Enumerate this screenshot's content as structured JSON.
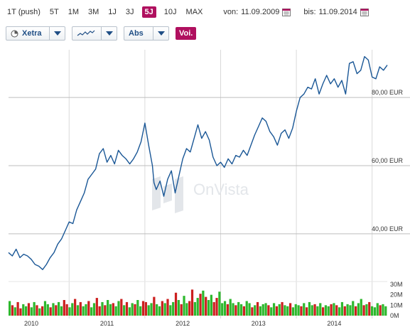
{
  "periods": [
    {
      "label": "1T (push)",
      "active": false
    },
    {
      "label": "5T",
      "active": false
    },
    {
      "label": "1M",
      "active": false
    },
    {
      "label": "3M",
      "active": false
    },
    {
      "label": "1J",
      "active": false
    },
    {
      "label": "3J",
      "active": false
    },
    {
      "label": "5J",
      "active": true
    },
    {
      "label": "10J",
      "active": false
    },
    {
      "label": "MAX",
      "active": false
    }
  ],
  "date_range": {
    "from_label": "von:",
    "from_value": "11.09.2009",
    "to_label": "bis:",
    "to_value": "11.09.2014"
  },
  "controls": {
    "exchange": "Xetra",
    "scale": "Abs",
    "compare": "Voi."
  },
  "watermark": "OnVista",
  "colors": {
    "accent": "#b0105f",
    "line": "#1a5796",
    "grid": "#cfcfcf",
    "volume_up": "#2db82d",
    "volume_down": "#cc1f1f"
  },
  "chart_data": {
    "type": "line",
    "x_labels": [
      "2010",
      "2011",
      "2012",
      "2013",
      "2014"
    ],
    "x_range": [
      2009.7,
      2014.7
    ],
    "y_ticks": [
      "40,00 EUR",
      "60,00 EUR",
      "80,00 EUR"
    ],
    "y_tick_values": [
      40,
      60,
      80
    ],
    "y_range": [
      26,
      94
    ],
    "price_series": {
      "name": "",
      "x": [
        2009.7,
        2009.75,
        2009.8,
        2009.85,
        2009.9,
        2009.95,
        2010.0,
        2010.05,
        2010.1,
        2010.15,
        2010.2,
        2010.25,
        2010.3,
        2010.35,
        2010.4,
        2010.45,
        2010.5,
        2010.55,
        2010.6,
        2010.65,
        2010.7,
        2010.75,
        2010.8,
        2010.85,
        2010.9,
        2010.95,
        2011.0,
        2011.05,
        2011.1,
        2011.15,
        2011.2,
        2011.25,
        2011.3,
        2011.35,
        2011.4,
        2011.45,
        2011.5,
        2011.55,
        2011.6,
        2011.62,
        2011.65,
        2011.7,
        2011.75,
        2011.8,
        2011.85,
        2011.9,
        2011.95,
        2012.0,
        2012.05,
        2012.1,
        2012.15,
        2012.2,
        2012.25,
        2012.3,
        2012.35,
        2012.4,
        2012.45,
        2012.5,
        2012.55,
        2012.6,
        2012.65,
        2012.7,
        2012.75,
        2012.8,
        2012.85,
        2012.9,
        2012.95,
        2013.0,
        2013.05,
        2013.1,
        2013.15,
        2013.2,
        2013.25,
        2013.3,
        2013.35,
        2013.4,
        2013.45,
        2013.5,
        2013.55,
        2013.6,
        2013.65,
        2013.7,
        2013.75,
        2013.8,
        2013.85,
        2013.9,
        2013.95,
        2014.0,
        2014.05,
        2014.1,
        2014.15,
        2014.2,
        2014.25,
        2014.3,
        2014.35,
        2014.4,
        2014.45,
        2014.5,
        2014.55,
        2014.6,
        2014.65,
        2014.7
      ],
      "y": [
        34.5,
        33.5,
        35.5,
        33.0,
        34.0,
        33.5,
        32.5,
        31.0,
        30.5,
        29.5,
        31.0,
        33.0,
        34.5,
        37.0,
        38.5,
        41.0,
        43.5,
        43.0,
        47.0,
        49.5,
        52.0,
        56.0,
        57.5,
        59.0,
        63.5,
        65.0,
        61.0,
        63.0,
        60.5,
        64.5,
        63.0,
        62.0,
        60.5,
        62.0,
        64.0,
        67.0,
        72.5,
        66.0,
        60.0,
        55.0,
        53.0,
        55.5,
        51.0,
        56.0,
        58.5,
        52.0,
        57.0,
        62.0,
        65.0,
        64.0,
        68.0,
        72.0,
        68.0,
        70.0,
        67.5,
        62.5,
        60.0,
        61.0,
        59.5,
        62.0,
        60.5,
        63.0,
        62.5,
        64.5,
        63.0,
        66.0,
        69.0,
        71.5,
        74.0,
        73.0,
        70.0,
        68.5,
        66.0,
        69.5,
        70.5,
        68.0,
        71.0,
        76.0,
        80.0,
        81.0,
        83.0,
        82.5,
        85.5,
        81.0,
        84.0,
        86.5,
        84.0,
        85.5,
        83.0,
        85.0,
        81.0,
        90.0,
        90.5,
        87.0,
        88.0,
        92.0,
        91.0,
        86.0,
        85.5,
        89.0,
        88.0,
        89.5
      ]
    },
    "volume_series": {
      "axis_ticks": [
        "30M",
        "20M",
        "10M",
        "0M"
      ],
      "axis_values": [
        30,
        20,
        10,
        0
      ],
      "values": [
        14,
        10,
        8,
        13,
        7,
        11,
        9,
        12,
        8,
        13,
        10,
        7,
        9,
        14,
        11,
        8,
        12,
        10,
        13,
        9,
        15,
        11,
        8,
        12,
        16,
        10,
        13,
        9,
        11,
        14,
        8,
        12,
        17,
        9,
        13,
        10,
        15,
        11,
        12,
        9,
        14,
        16,
        10,
        13,
        8,
        12,
        11,
        15,
        9,
        14,
        13,
        10,
        12,
        18,
        11,
        9,
        14,
        12,
        16,
        10,
        13,
        22,
        15,
        11,
        19,
        12,
        14,
        25,
        13,
        17,
        21,
        24,
        18,
        15,
        20,
        13,
        17,
        23,
        12,
        14,
        11,
        16,
        12,
        10,
        13,
        11,
        9,
        14,
        12,
        8,
        10,
        13,
        9,
        11,
        12,
        10,
        8,
        12,
        9,
        11,
        13,
        10,
        9,
        12,
        8,
        11,
        10,
        9,
        12,
        8,
        13,
        10,
        11,
        9,
        12,
        8,
        10,
        9,
        11,
        12,
        10,
        8,
        13,
        9,
        11,
        10,
        14,
        9,
        12,
        16,
        10,
        11,
        13,
        9,
        8,
        12,
        10,
        11,
        9
      ],
      "up": [
        1,
        0,
        1,
        0,
        0,
        1,
        1,
        0,
        1,
        1,
        0,
        1,
        0,
        1,
        1,
        0,
        1,
        0,
        1,
        1,
        0,
        0,
        1,
        1,
        0,
        1,
        0,
        1,
        1,
        0,
        1,
        1,
        0,
        0,
        1,
        0,
        1,
        1,
        0,
        1,
        1,
        0,
        1,
        0,
        1,
        1,
        0,
        1,
        1,
        0,
        0,
        1,
        1,
        0,
        1,
        1,
        0,
        1,
        0,
        1,
        1,
        0,
        1,
        0,
        1,
        1,
        0,
        0,
        1,
        1,
        0,
        1,
        0,
        1,
        1,
        0,
        0,
        1,
        1,
        1,
        0,
        1,
        1,
        0,
        1,
        1,
        0,
        1,
        1,
        0,
        1,
        0,
        1,
        1,
        1,
        0,
        1,
        1,
        0,
        1,
        0,
        1,
        1,
        0,
        1,
        1,
        1,
        0,
        1,
        0,
        1,
        1,
        0,
        1,
        1,
        0,
        1,
        1,
        0,
        1,
        0,
        1,
        1,
        0,
        1,
        1,
        1,
        0,
        1,
        1,
        0,
        1,
        0,
        1,
        1,
        1,
        0,
        1,
        1
      ]
    }
  }
}
